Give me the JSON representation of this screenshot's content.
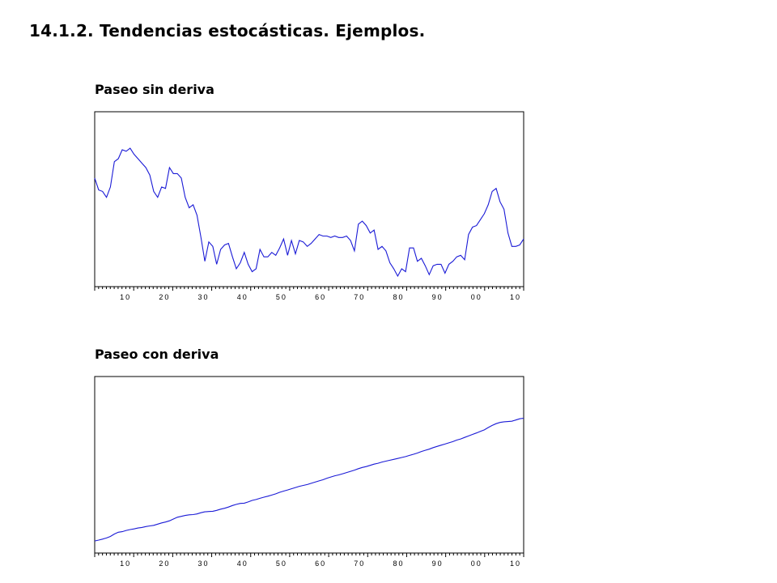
{
  "page": {
    "title": "14.1.2. Tendencias estocásticas. Ejemplos."
  },
  "chart_data": [
    {
      "type": "line",
      "title": "Paseo sin deriva",
      "xlabel": "",
      "ylabel": "",
      "x_tick_labels": [
        "10",
        "20",
        "30",
        "40",
        "50",
        "60",
        "70",
        "80",
        "90",
        "00",
        "10"
      ],
      "xlim": [
        0,
        110
      ],
      "ylim": [
        0,
        100
      ],
      "grid": false,
      "series": [
        {
          "color": "#1a1ad6",
          "values": [
            66,
            58,
            57,
            53,
            60,
            77,
            79,
            85,
            84,
            86,
            82,
            79,
            76,
            73,
            68,
            57,
            53,
            60,
            59,
            73,
            69,
            69,
            66,
            53,
            46,
            48,
            41,
            26,
            10,
            23,
            20,
            8,
            18,
            21,
            22,
            13,
            5,
            9,
            16,
            8,
            3,
            5,
            18,
            13,
            13,
            16,
            14,
            19,
            25,
            14,
            24,
            15,
            24,
            23,
            20,
            22,
            25,
            28,
            27,
            27,
            26,
            27,
            26,
            26,
            27,
            24,
            17,
            35,
            37,
            34,
            29,
            31,
            18,
            20,
            17,
            9,
            5,
            0,
            5,
            3,
            19,
            19,
            10,
            12,
            7,
            1,
            7,
            8,
            8,
            2,
            8,
            10,
            13,
            14,
            11,
            28,
            33,
            34,
            38,
            42,
            48,
            57,
            59,
            50,
            45,
            29,
            20,
            20,
            21,
            25
          ]
        }
      ]
    },
    {
      "type": "line",
      "title": "Paseo con deriva",
      "xlabel": "",
      "ylabel": "",
      "x_tick_labels": [
        "10",
        "20",
        "30",
        "40",
        "50",
        "60",
        "70",
        "80",
        "90",
        "00",
        "10"
      ],
      "xlim": [
        0,
        110
      ],
      "ylim": [
        0,
        100
      ],
      "grid": false,
      "series": [
        {
          "color": "#1a1ad6",
          "values": [
            1,
            1.6,
            2.2,
            3,
            4,
            5.6,
            6.8,
            7.2,
            8,
            8.6,
            9,
            9.6,
            10,
            10.6,
            11,
            11.4,
            12.2,
            13,
            13.6,
            14.4,
            15.6,
            16.8,
            17.4,
            18,
            18.4,
            18.6,
            19,
            19.8,
            20.4,
            20.6,
            20.8,
            21.4,
            22.2,
            22.8,
            23.6,
            24.6,
            25.4,
            26,
            26.2,
            27,
            28,
            28.6,
            29.4,
            30.2,
            30.8,
            31.6,
            32.4,
            33.4,
            34.2,
            35,
            35.8,
            36.6,
            37.4,
            38,
            38.6,
            39.4,
            40.2,
            41,
            41.8,
            42.8,
            43.6,
            44.4,
            45,
            45.8,
            46.6,
            47.4,
            48.2,
            49.2,
            50,
            50.6,
            51.4,
            52.2,
            52.8,
            53.6,
            54.2,
            54.8,
            55.4,
            56,
            56.6,
            57.2,
            58,
            58.8,
            59.6,
            60.6,
            61.4,
            62.2,
            63.2,
            64,
            64.8,
            65.6,
            66.4,
            67.2,
            68.2,
            69,
            70,
            71,
            72,
            73,
            74,
            75,
            76.6,
            78,
            79.2,
            80,
            80.4,
            80.6,
            80.8,
            81.6,
            82.4,
            82.8
          ]
        }
      ]
    }
  ]
}
